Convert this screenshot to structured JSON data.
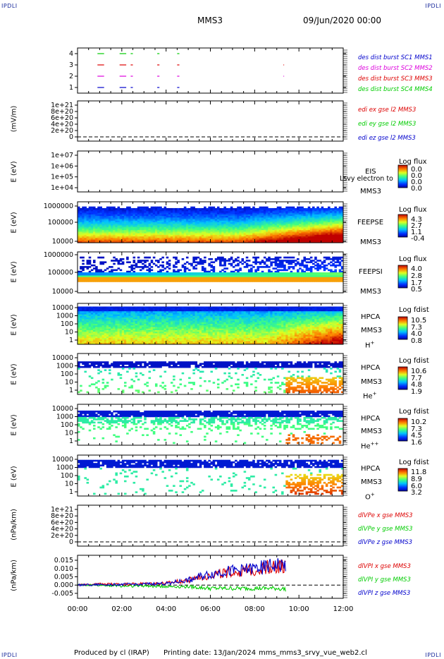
{
  "corners": {
    "tl": "IPDLI",
    "tr": "IPDLI",
    "bl": "IPDLI",
    "br": "IPDLI"
  },
  "header": {
    "title": "MMS3",
    "datetime": "09/Jun/2020 00:00"
  },
  "footer": {
    "produced": "Produced by cl (IRAP)",
    "printing": "Printing date: 13/Jan/2024",
    "file": "mms_mms3_srvy_vue_web2.cl"
  },
  "colors": {
    "blue": "#0000cc",
    "red": "#dd0000",
    "magenta": "#dd00dd",
    "green": "#00cc00"
  },
  "chart_data": [
    {
      "type": "scatter",
      "panel": "burst",
      "yticks": [
        "4",
        "3",
        "2",
        "1"
      ],
      "legend": [
        "des dist burst SC1 MMS1",
        "des dist burst SC2 MMS2",
        "des dist burst SC3 MMS3",
        "des dist burst SC4 MMS4"
      ],
      "legend_colors": [
        "#0000cc",
        "#dd00dd",
        "#dd0000",
        "#00cc00"
      ],
      "series": [
        {
          "level": 4,
          "color": "#00cc00",
          "intervals": [
            [
              0.9,
              1.2
            ],
            [
              1.9,
              2.2
            ],
            [
              2.4,
              2.5
            ],
            [
              3.6,
              3.7
            ],
            [
              4.5,
              4.6
            ]
          ]
        },
        {
          "level": 3,
          "color": "#dd0000",
          "intervals": [
            [
              0.9,
              1.2
            ],
            [
              1.9,
              2.2
            ],
            [
              2.4,
              2.5
            ],
            [
              3.6,
              3.7
            ],
            [
              4.5,
              4.6
            ],
            [
              9.3,
              9.33
            ]
          ]
        },
        {
          "level": 2,
          "color": "#dd00dd",
          "intervals": [
            [
              0.9,
              1.2
            ],
            [
              1.9,
              2.2
            ],
            [
              2.4,
              2.5
            ],
            [
              3.6,
              3.7
            ],
            [
              4.5,
              4.6
            ],
            [
              9.3,
              9.33
            ]
          ]
        },
        {
          "level": 1,
          "color": "#0000cc",
          "intervals": [
            [
              0.9,
              1.2
            ],
            [
              1.9,
              2.2
            ],
            [
              2.4,
              2.5
            ],
            [
              3.6,
              3.7
            ],
            [
              4.5,
              4.6
            ]
          ]
        }
      ]
    },
    {
      "type": "line",
      "panel": "edi",
      "ylabel": "(mV/m)",
      "yticks": [
        "1e+21",
        "8e+20",
        "6e+20",
        "4e+20",
        "2e+20",
        "0"
      ],
      "legend": [
        "edi ex gse l2 MMS3",
        "edi ey gse l2 MMS3",
        "edi ez gse l2 MMS3"
      ],
      "legend_colors": [
        "#dd0000",
        "#00cc00",
        "#0000cc"
      ]
    },
    {
      "type": "heatmap",
      "panel": "eis",
      "ylabel": "E (eV)",
      "yticks": [
        "1e+07",
        "1e+06",
        "1e+05",
        "1e+04"
      ],
      "instrument": [
        "EIS",
        "MMS3"
      ],
      "overlay": "Lsvy electron to",
      "colorbar_title": "Log flux",
      "colorbar_labels": [
        "0.0",
        "0.0",
        "0.0",
        "0.0"
      ]
    },
    {
      "type": "heatmap",
      "panel": "feepse",
      "ylabel": "E (eV)",
      "yticks": [
        "1000000",
        "100000",
        "10000"
      ],
      "instrument": [
        "FEEPSE",
        "MMS3"
      ],
      "colorbar_title": "Log flux",
      "colorbar_labels": [
        "4.3",
        "2.7",
        "1.1",
        "-0.4"
      ]
    },
    {
      "type": "heatmap",
      "panel": "feepsi",
      "ylabel": "E (eV)",
      "yticks": [
        "1000000",
        "100000",
        "10000"
      ],
      "instrument": [
        "FEEPSI",
        "MMS3"
      ],
      "colorbar_title": "Log flux",
      "colorbar_labels": [
        "4.0",
        "2.8",
        "1.7",
        "0.5"
      ]
    },
    {
      "type": "heatmap",
      "panel": "hpca_h",
      "ylabel": "E (eV)",
      "yticks": [
        "10000",
        "1000",
        "100",
        "10",
        "1"
      ],
      "instrument": [
        "HPCA",
        "MMS3"
      ],
      "species": "H",
      "charge": "+",
      "colorbar_title": "Log fdist",
      "colorbar_labels": [
        "10.5",
        "7.3",
        "4.0",
        "0.8"
      ]
    },
    {
      "type": "heatmap",
      "panel": "hpca_he",
      "ylabel": "E (eV)",
      "yticks": [
        "10000",
        "1000",
        "100",
        "10",
        "1"
      ],
      "instrument": [
        "HPCA",
        "MMS3"
      ],
      "species": "He",
      "charge": "+",
      "colorbar_title": "Log fdist",
      "colorbar_labels": [
        "10.6",
        "7.7",
        "4.8",
        "1.9"
      ]
    },
    {
      "type": "heatmap",
      "panel": "hpca_hepp",
      "ylabel": "E (eV)",
      "yticks": [
        "10000",
        "1000",
        "100",
        "10",
        "1"
      ],
      "instrument": [
        "HPCA",
        "MMS3"
      ],
      "species": "He",
      "charge": "++",
      "colorbar_title": "Log fdist",
      "colorbar_labels": [
        "10.2",
        "7.3",
        "4.5",
        "1.6"
      ]
    },
    {
      "type": "heatmap",
      "panel": "hpca_o",
      "ylabel": "E (eV)",
      "yticks": [
        "10000",
        "1000",
        "100",
        "10",
        "1"
      ],
      "instrument": [
        "HPCA",
        "MMS3"
      ],
      "species": "O",
      "charge": "+",
      "colorbar_title": "Log fdist",
      "colorbar_labels": [
        "11.8",
        "8.9",
        "6.0",
        "3.2"
      ]
    },
    {
      "type": "line",
      "panel": "divpe",
      "ylabel": "(nPa/km)",
      "yticks": [
        "1e+21",
        "8e+20",
        "6e+20",
        "4e+20",
        "2e+20",
        "0"
      ],
      "legend": [
        "dlVPe x gse MMS3",
        "dlVPe y gse MMS3",
        "dlVPe z gse MMS3"
      ],
      "legend_colors": [
        "#dd0000",
        "#00cc00",
        "#0000cc"
      ]
    },
    {
      "type": "line",
      "panel": "divpi",
      "ylabel": "(nPa/km)",
      "yticks": [
        "0.015",
        "0.010",
        "0.005",
        "0.000",
        "-0.005"
      ],
      "ylim": [
        -0.008,
        0.018
      ],
      "legend": [
        "dlVPI x gse MMS3",
        "dlVPI y gse MMS3",
        "dlVPI z gse MMS3"
      ],
      "legend_colors": [
        "#dd0000",
        "#00cc00",
        "#0000cc"
      ],
      "x_end_hours": 9.4,
      "series": [
        {
          "name": "dlVPI x gse MMS3",
          "color": "#dd0000",
          "x": [
            0,
            1,
            2,
            3,
            4,
            5,
            5.5,
            6,
            6.5,
            7,
            7.5,
            8,
            8.5,
            9,
            9.4
          ],
          "y": [
            0.0,
            0.0005,
            0.0005,
            0.0008,
            0.001,
            0.003,
            0.005,
            0.006,
            0.007,
            0.008,
            0.008,
            0.009,
            0.011,
            0.011,
            0.011
          ]
        },
        {
          "name": "dlVPI y gse MMS3",
          "color": "#00cc00",
          "x": [
            0,
            1,
            2,
            3,
            4,
            5,
            5.5,
            6,
            6.5,
            7,
            7.5,
            8,
            8.5,
            9,
            9.4
          ],
          "y": [
            0.0,
            0.0,
            -0.0005,
            -0.0005,
            -0.0008,
            -0.001,
            -0.0015,
            -0.002,
            -0.002,
            -0.002,
            -0.002,
            -0.002,
            -0.002,
            -0.002,
            -0.0025
          ]
        },
        {
          "name": "dlVPI z gse MMS3",
          "color": "#0000cc",
          "x": [
            0,
            1,
            2,
            3,
            4,
            5,
            5.5,
            6,
            6.5,
            7,
            7.5,
            8,
            8.5,
            9,
            9.4
          ],
          "y": [
            0.0,
            0.0003,
            0.0003,
            0.0006,
            0.001,
            0.003,
            0.005,
            0.0065,
            0.008,
            0.0085,
            0.009,
            0.01,
            0.011,
            0.012,
            0.012
          ]
        }
      ]
    }
  ],
  "xaxis": {
    "ticks": [
      "00:00",
      "02:00",
      "04:00",
      "06:00",
      "08:00",
      "10:00",
      "12:00"
    ],
    "range_hours": [
      0,
      12
    ]
  }
}
